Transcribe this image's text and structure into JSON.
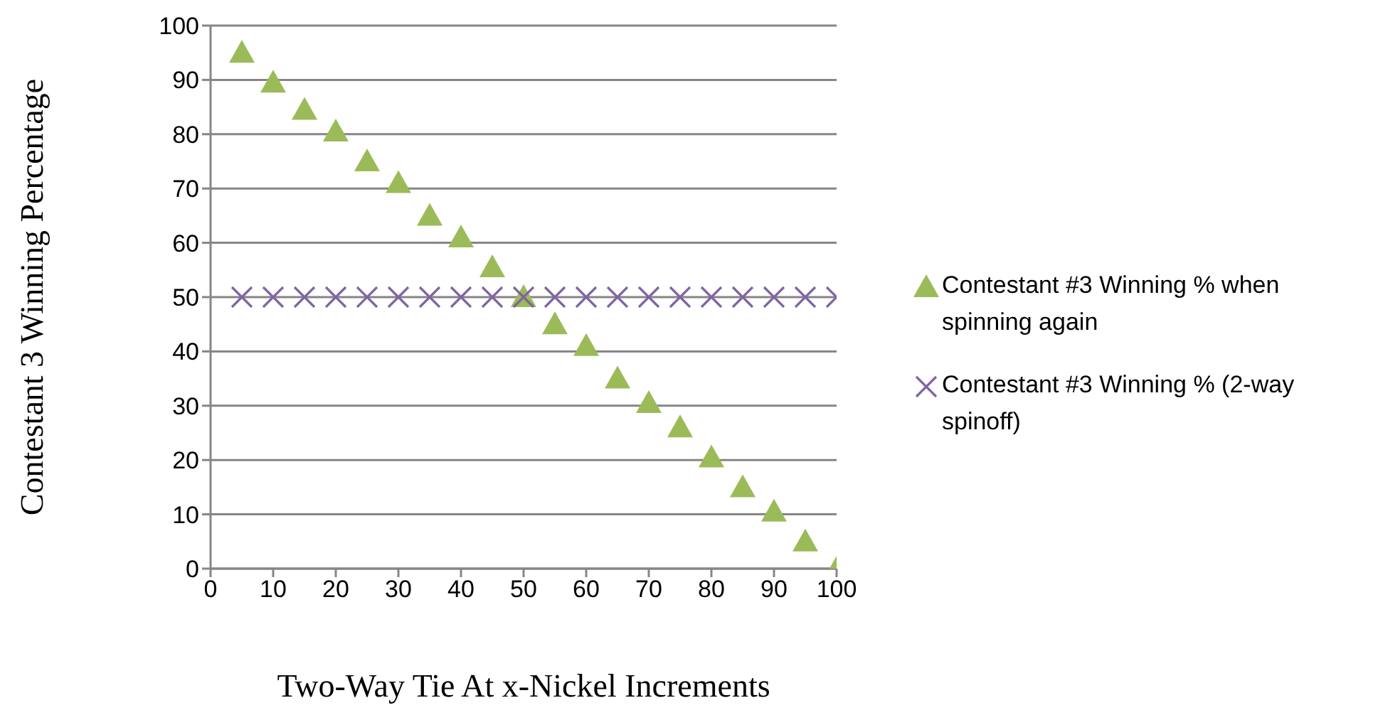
{
  "chart_data": {
    "type": "scatter",
    "xlabel": "Two-Way Tie At x-Nickel Increments",
    "ylabel": "Contestant 3 Winning Percentage",
    "x": [
      5,
      10,
      15,
      20,
      25,
      30,
      35,
      40,
      45,
      50,
      55,
      60,
      65,
      70,
      75,
      80,
      85,
      90,
      95,
      100
    ],
    "series": [
      {
        "name": "Contestant #3 Winning % when spinning again",
        "color": "#9bbb59",
        "marker": "triangle",
        "values": [
          95,
          89.5,
          84.5,
          80.5,
          75,
          71,
          65,
          61,
          55.5,
          50,
          45,
          41,
          35,
          30.5,
          26,
          20.5,
          15,
          10.5,
          5,
          0
        ]
      },
      {
        "name": "Contestant #3 Winning % (2-way spinoff)",
        "color": "#8064a2",
        "marker": "cross",
        "values": [
          50,
          50,
          50,
          50,
          50,
          50,
          50,
          50,
          50,
          50,
          50,
          50,
          50,
          50,
          50,
          50,
          50,
          50,
          50,
          50
        ]
      }
    ],
    "xlim": [
      0,
      100
    ],
    "xticks": [
      0,
      10,
      20,
      30,
      40,
      50,
      60,
      70,
      80,
      90,
      100
    ],
    "ylim": [
      0,
      100
    ],
    "yticks": [
      0,
      10,
      20,
      30,
      40,
      50,
      60,
      70,
      80,
      90,
      100
    ],
    "grid": "y",
    "legend": "right"
  }
}
